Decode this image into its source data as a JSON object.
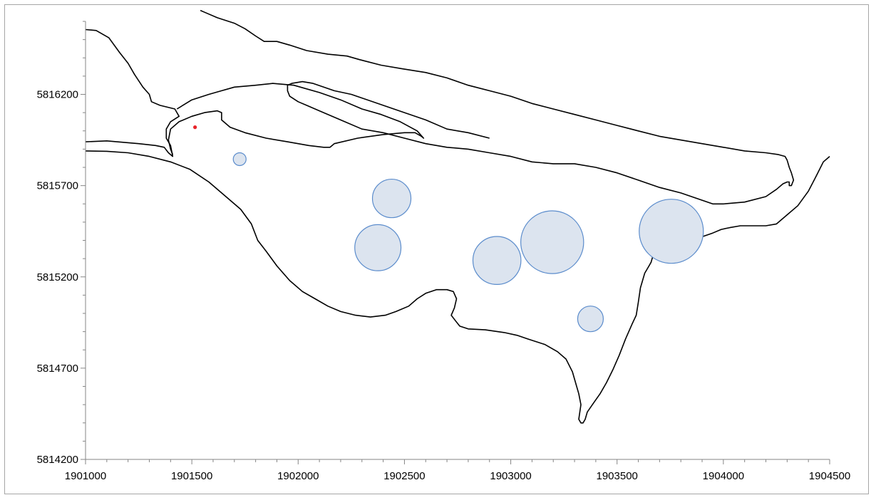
{
  "chart_data": {
    "type": "scatter",
    "subtype": "bubble",
    "title": "",
    "xlabel": "",
    "ylabel": "",
    "xlim": [
      1901000,
      1904500
    ],
    "ylim": [
      5814200,
      5816600
    ],
    "x_ticks": [
      "1901000",
      "1901500",
      "1902000",
      "1902500",
      "1903000",
      "1903500",
      "1904000",
      "1904500"
    ],
    "y_ticks": [
      "5814200",
      "5814700",
      "5815200",
      "5815700",
      "5816200"
    ],
    "grid": false,
    "legend": "none",
    "colors": {
      "bubble_fill": "#dce4ef",
      "bubble_stroke": "#5b8ccc",
      "outline": "#000000",
      "marker": "#e8242a",
      "axis": "#868686"
    },
    "series": [
      {
        "type": "bubble",
        "points": [
          {
            "x": 1901725,
            "y": 5815845,
            "size": 1
          },
          {
            "x": 1902440,
            "y": 5815630,
            "size": 9
          },
          {
            "x": 1902375,
            "y": 5815360,
            "size": 13
          },
          {
            "x": 1902935,
            "y": 5815290,
            "size": 14
          },
          {
            "x": 1903195,
            "y": 5815390,
            "size": 24
          },
          {
            "x": 1903375,
            "y": 5814970,
            "size": 4
          },
          {
            "x": 1903755,
            "y": 5815450,
            "size": 25
          }
        ]
      },
      {
        "type": "scatter",
        "points": [
          {
            "x": 1901515,
            "y": 5816020
          }
        ]
      },
      {
        "type": "line",
        "paths": [
          [
            [
              1901000,
              5816555
            ],
            [
              1901050,
              5816550
            ],
            [
              1901110,
              5816510
            ],
            [
              1901160,
              5816430
            ],
            [
              1901200,
              5816370
            ],
            [
              1901230,
              5816310
            ],
            [
              1901270,
              5816240
            ],
            [
              1901300,
              5816200
            ],
            [
              1901310,
              5816160
            ],
            [
              1901350,
              5816140
            ],
            [
              1901420,
              5816120
            ],
            [
              1901440,
              5816080
            ],
            [
              1901400,
              5816050
            ],
            [
              1901380,
              5816010
            ],
            [
              1901380,
              5815960
            ],
            [
              1901400,
              5815920
            ],
            [
              1901410,
              5815860
            ],
            [
              1901390,
              5815880
            ],
            [
              1901370,
              5815910
            ],
            [
              1901330,
              5815920
            ],
            [
              1901250,
              5815930
            ],
            [
              1901100,
              5815945
            ],
            [
              1901000,
              5815940
            ]
          ],
          [
            [
              1901000,
              5815890
            ],
            [
              1901100,
              5815888
            ],
            [
              1901200,
              5815880
            ],
            [
              1901300,
              5815860
            ],
            [
              1901400,
              5815830
            ],
            [
              1901490,
              5815790
            ],
            [
              1901580,
              5815720
            ],
            [
              1901660,
              5815640
            ],
            [
              1901730,
              5815570
            ],
            [
              1901780,
              5815490
            ],
            [
              1901810,
              5815400
            ],
            [
              1901850,
              5815340
            ],
            [
              1901900,
              5815260
            ],
            [
              1901960,
              5815180
            ],
            [
              1902020,
              5815120
            ],
            [
              1902080,
              5815080
            ],
            [
              1902140,
              5815040
            ],
            [
              1902200,
              5815010
            ],
            [
              1902270,
              5814990
            ],
            [
              1902340,
              5814980
            ],
            [
              1902410,
              5814990
            ],
            [
              1902460,
              5815010
            ],
            [
              1902520,
              5815040
            ],
            [
              1902560,
              5815080
            ],
            [
              1902600,
              5815110
            ],
            [
              1902650,
              5815130
            ],
            [
              1902700,
              5815130
            ],
            [
              1902730,
              5815120
            ],
            [
              1902745,
              5815080
            ],
            [
              1902735,
              5815030
            ],
            [
              1902720,
              5814990
            ],
            [
              1902740,
              5814960
            ],
            [
              1902760,
              5814930
            ],
            [
              1902800,
              5814915
            ],
            [
              1902880,
              5814910
            ],
            [
              1902970,
              5814895
            ],
            [
              1903030,
              5814880
            ],
            [
              1903080,
              5814860
            ],
            [
              1903160,
              5814830
            ],
            [
              1903220,
              5814790
            ],
            [
              1903260,
              5814750
            ],
            [
              1903290,
              5814680
            ],
            [
              1903310,
              5814600
            ],
            [
              1903320,
              5814560
            ],
            [
              1903330,
              5814500
            ],
            [
              1903325,
              5814460
            ],
            [
              1903320,
              5814420
            ],
            [
              1903330,
              5814400
            ],
            [
              1903340,
              5814400
            ],
            [
              1903350,
              5814420
            ],
            [
              1903360,
              5814460
            ],
            [
              1903390,
              5814510
            ],
            [
              1903420,
              5814560
            ],
            [
              1903450,
              5814620
            ],
            [
              1903480,
              5814690
            ],
            [
              1903510,
              5814770
            ],
            [
              1903540,
              5814860
            ],
            [
              1903570,
              5814940
            ],
            [
              1903590,
              5814990
            ],
            [
              1903600,
              5815060
            ],
            [
              1903610,
              5815140
            ],
            [
              1903620,
              5815180
            ],
            [
              1903630,
              5815220
            ],
            [
              1903640,
              5815240
            ],
            [
              1903650,
              5815260
            ],
            [
              1903660,
              5815280
            ],
            [
              1903665,
              5815300
            ],
            [
              1903670,
              5815320
            ],
            [
              1903680,
              5815350
            ],
            [
              1903700,
              5815370
            ],
            [
              1903750,
              5815390
            ],
            [
              1903800,
              5815400
            ],
            [
              1903850,
              5815410
            ],
            [
              1903900,
              5815420
            ],
            [
              1903950,
              5815440
            ],
            [
              1903990,
              5815460
            ],
            [
              1904030,
              5815470
            ],
            [
              1904080,
              5815480
            ],
            [
              1904150,
              5815480
            ],
            [
              1904200,
              5815480
            ],
            [
              1904250,
              5815490
            ],
            [
              1904300,
              5815540
            ],
            [
              1904350,
              5815590
            ],
            [
              1904400,
              5815670
            ],
            [
              1904440,
              5815760
            ],
            [
              1904470,
              5815830
            ],
            [
              1904500,
              5815860
            ]
          ],
          [
            [
              1901410,
              5815870
            ],
            [
              1901400,
              5815900
            ],
            [
              1901390,
              5815950
            ],
            [
              1901400,
              5816010
            ],
            [
              1901440,
              5816050
            ],
            [
              1901500,
              5816080
            ],
            [
              1901560,
              5816100
            ],
            [
              1901620,
              5816110
            ],
            [
              1901640,
              5816100
            ],
            [
              1901640,
              5816060
            ],
            [
              1901680,
              5816020
            ],
            [
              1901750,
              5815990
            ],
            [
              1901850,
              5815960
            ],
            [
              1901950,
              5815940
            ],
            [
              1902050,
              5815920
            ],
            [
              1902120,
              5815910
            ],
            [
              1902150,
              5815910
            ],
            [
              1902160,
              5815920
            ],
            [
              1902170,
              5815930
            ],
            [
              1902280,
              5815960
            ],
            [
              1902400,
              5815980
            ],
            [
              1902500,
              5815990
            ],
            [
              1902550,
              5815990
            ],
            [
              1902580,
              5815970
            ],
            [
              1902590,
              5815960
            ],
            [
              1902560,
              5816000
            ],
            [
              1902480,
              5816050
            ],
            [
              1902390,
              5816090
            ],
            [
              1902300,
              5816120
            ],
            [
              1902200,
              5816170
            ],
            [
              1902100,
              5816210
            ],
            [
              1901980,
              5816250
            ],
            [
              1901880,
              5816260
            ],
            [
              1901800,
              5816250
            ],
            [
              1901700,
              5816240
            ],
            [
              1901640,
              5816220
            ],
            [
              1901580,
              5816200
            ],
            [
              1901500,
              5816170
            ],
            [
              1901430,
              5816120
            ]
          ],
          [
            [
              1901540,
              5816660
            ],
            [
              1901560,
              5816650
            ],
            [
              1901620,
              5816620
            ],
            [
              1901700,
              5816590
            ],
            [
              1901750,
              5816560
            ],
            [
              1901800,
              5816520
            ],
            [
              1901840,
              5816490
            ],
            [
              1901900,
              5816490
            ],
            [
              1901960,
              5816470
            ],
            [
              1902040,
              5816440
            ],
            [
              1902140,
              5816420
            ],
            [
              1902230,
              5816410
            ],
            [
              1902290,
              5816390
            ],
            [
              1902390,
              5816360
            ],
            [
              1902490,
              5816340
            ],
            [
              1902600,
              5816320
            ],
            [
              1902700,
              5816290
            ],
            [
              1902800,
              5816250
            ],
            [
              1902900,
              5816220
            ],
            [
              1903000,
              5816190
            ],
            [
              1903100,
              5816150
            ],
            [
              1903200,
              5816120
            ],
            [
              1903300,
              5816090
            ],
            [
              1903400,
              5816060
            ],
            [
              1903500,
              5816030
            ],
            [
              1903600,
              5816000
            ],
            [
              1903700,
              5815970
            ],
            [
              1903800,
              5815950
            ],
            [
              1903900,
              5815930
            ],
            [
              1904000,
              5815910
            ],
            [
              1904100,
              5815890
            ],
            [
              1904200,
              5815880
            ],
            [
              1904260,
              5815870
            ],
            [
              1904290,
              5815860
            ],
            [
              1904300,
              5815840
            ],
            [
              1904310,
              5815800
            ],
            [
              1904320,
              5815770
            ],
            [
              1904330,
              5815730
            ],
            [
              1904320,
              5815700
            ],
            [
              1904310,
              5815700
            ],
            [
              1904310,
              5815720
            ],
            [
              1904300,
              5815720
            ],
            [
              1904280,
              5815710
            ],
            [
              1904250,
              5815680
            ],
            [
              1904200,
              5815640
            ],
            [
              1904100,
              5815610
            ],
            [
              1904000,
              5815600
            ],
            [
              1903950,
              5815600
            ],
            [
              1903900,
              5815620
            ],
            [
              1903850,
              5815640
            ],
            [
              1903800,
              5815660
            ],
            [
              1903700,
              5815690
            ],
            [
              1903600,
              5815730
            ],
            [
              1903500,
              5815770
            ],
            [
              1903400,
              5815800
            ],
            [
              1903300,
              5815820
            ],
            [
              1903200,
              5815820
            ],
            [
              1903100,
              5815830
            ],
            [
              1903000,
              5815860
            ],
            [
              1902900,
              5815880
            ],
            [
              1902800,
              5815900
            ],
            [
              1902700,
              5815910
            ],
            [
              1902600,
              5815930
            ],
            [
              1902500,
              5815960
            ],
            [
              1902400,
              5815990
            ],
            [
              1902300,
              5816010
            ],
            [
              1902200,
              5816060
            ],
            [
              1902100,
              5816110
            ],
            [
              1902040,
              5816140
            ],
            [
              1902000,
              5816160
            ],
            [
              1901960,
              5816190
            ],
            [
              1901950,
              5816220
            ],
            [
              1901950,
              5816250
            ],
            [
              1901970,
              5816260
            ],
            [
              1902020,
              5816270
            ],
            [
              1902070,
              5816260
            ],
            [
              1902120,
              5816240
            ],
            [
              1902170,
              5816220
            ],
            [
              1902250,
              5816200
            ],
            [
              1902300,
              5816180
            ],
            [
              1902400,
              5816140
            ],
            [
              1902500,
              5816100
            ],
            [
              1902600,
              5816060
            ],
            [
              1902700,
              5816010
            ],
            [
              1902800,
              5815990
            ],
            [
              1902900,
              5815960
            ]
          ]
        ]
      }
    ]
  }
}
